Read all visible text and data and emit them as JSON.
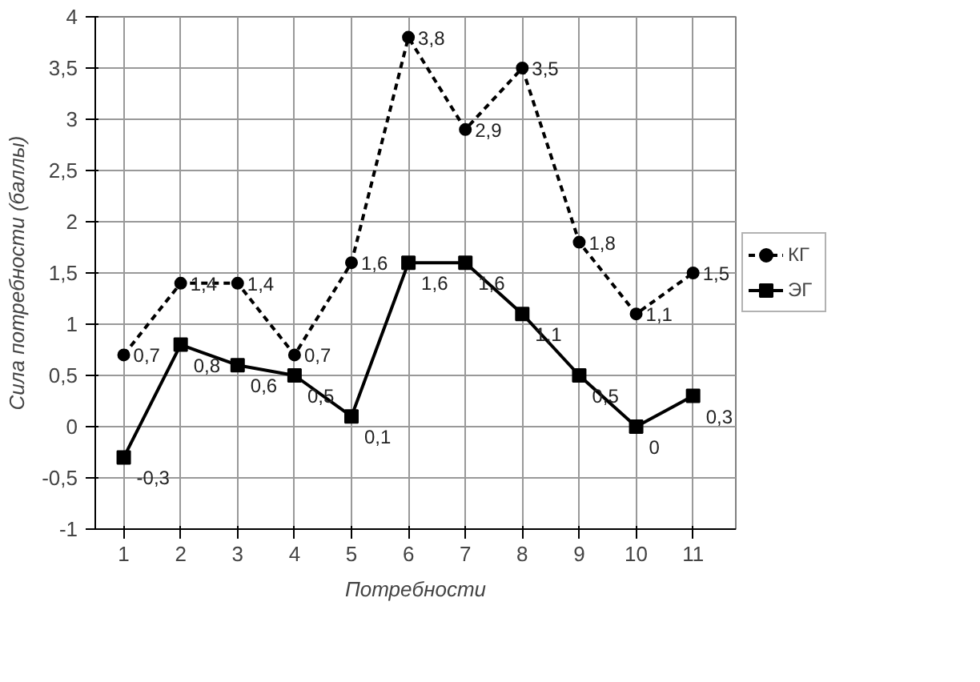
{
  "chart_data": {
    "type": "line",
    "xlabel": "Потребности",
    "ylabel": "Сила потребности (баллы)",
    "categories": [
      "1",
      "2",
      "3",
      "4",
      "5",
      "6",
      "7",
      "8",
      "9",
      "10",
      "11"
    ],
    "ylim": [
      -1,
      4
    ],
    "yticks": [
      -1,
      {
        "value": -0.5,
        "label": "-0,5"
      },
      0,
      {
        "value": 0.5,
        "label": "0,5"
      },
      1,
      {
        "value": 1.5,
        "label": "1,5"
      },
      2,
      {
        "value": 2.5,
        "label": "2,5"
      },
      3,
      {
        "value": 3.5,
        "label": "3,5"
      },
      4
    ],
    "grid": true,
    "legend": "right",
    "series": [
      {
        "name": "КГ",
        "color": "#000000",
        "marker": "circle",
        "line_style": "dashed",
        "values": [
          0.7,
          1.4,
          1.4,
          0.7,
          1.6,
          3.8,
          2.9,
          3.5,
          1.8,
          1.1,
          1.5
        ],
        "value_labels": [
          "0,7",
          "1,4",
          "1,4",
          "0,7",
          "1,6",
          "3,8",
          "2,9",
          "3,5",
          "1,8",
          "1,1",
          "1,5"
        ]
      },
      {
        "name": "ЭГ",
        "color": "#000000",
        "marker": "square",
        "line_style": "solid",
        "values": [
          -0.3,
          0.8,
          0.6,
          0.5,
          0.1,
          1.6,
          1.6,
          1.1,
          0.5,
          0,
          0.3
        ],
        "value_labels": [
          "-0,3",
          "0,8",
          "0,6",
          "0,5",
          "0,1",
          "1,6",
          "1,6",
          "1,1",
          "0,5",
          "0",
          "0,3"
        ]
      }
    ]
  }
}
